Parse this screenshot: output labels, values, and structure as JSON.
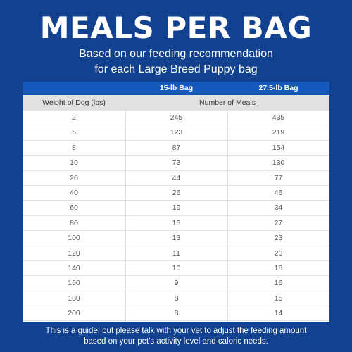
{
  "title": "MEALS PER BAG",
  "subtitle": {
    "line1": "Based on our feeding recommendation",
    "line2": "for each Large Breed Puppy bag"
  },
  "table": {
    "bag_headers": [
      "15-lb Bag",
      "27.5-lb Bag"
    ],
    "col_header": "Weight of Dog (lbs)",
    "group_header": "Number of Meals",
    "rows": [
      [
        "2",
        "245",
        "435"
      ],
      [
        "5",
        "123",
        "219"
      ],
      [
        "8",
        "87",
        "154"
      ],
      [
        "10",
        "73",
        "130"
      ],
      [
        "20",
        "44",
        "77"
      ],
      [
        "40",
        "26",
        "46"
      ],
      [
        "60",
        "19",
        "34"
      ],
      [
        "80",
        "15",
        "27"
      ],
      [
        "100",
        "13",
        "23"
      ],
      [
        "120",
        "11",
        "20"
      ],
      [
        "140",
        "10",
        "18"
      ],
      [
        "160",
        "9",
        "16"
      ],
      [
        "180",
        "8",
        "15"
      ],
      [
        "200",
        "8",
        "14"
      ]
    ]
  },
  "footer": {
    "line1": "This is a guide, but please talk with your vet to adjust the feeding amount",
    "line2": "based on your pet's activity level and caloric needs."
  },
  "colors": {
    "background": "#11418f",
    "header_blue": "#1659bc",
    "header_gray": "#e1e1e1"
  }
}
